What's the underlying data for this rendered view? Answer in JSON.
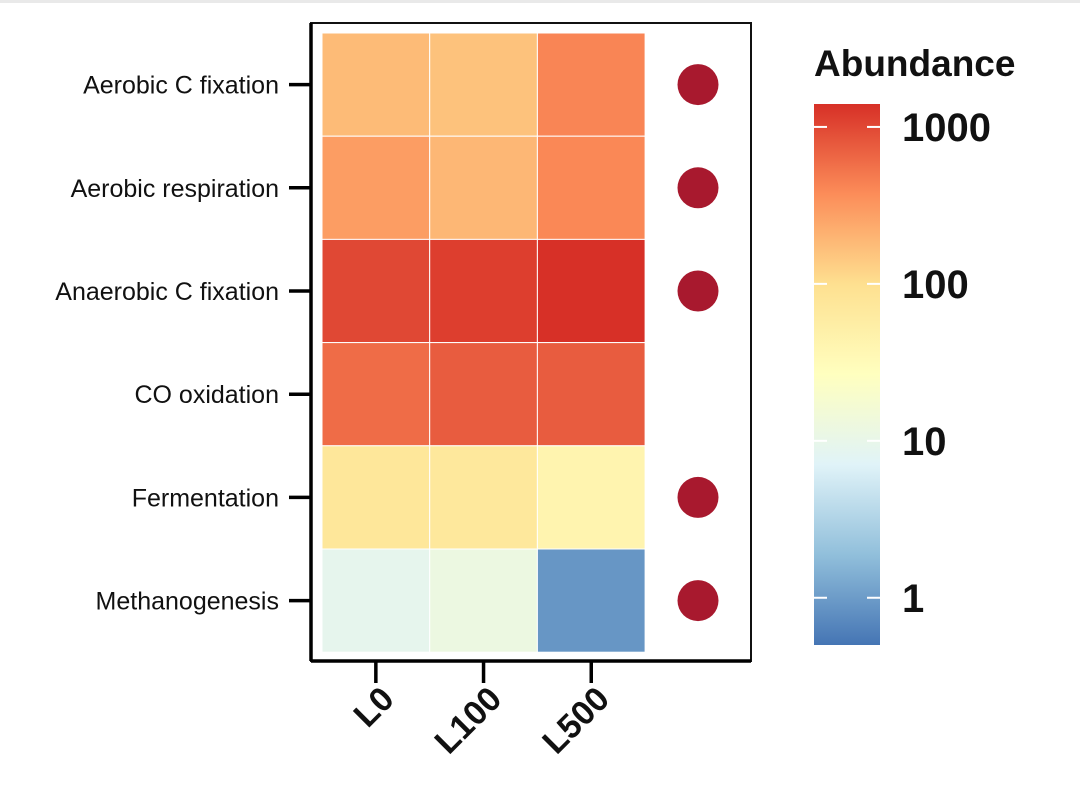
{
  "chart_data": {
    "type": "heatmap",
    "rows": [
      "Aerobic C fixation",
      "Aerobic respiration",
      "Anaerobic C fixation",
      "CO oxidation",
      "Fermentation",
      "Methanogenesis"
    ],
    "columns": [
      "L0",
      "L100",
      "L500"
    ],
    "values": [
      [
        180,
        160,
        420
      ],
      [
        290,
        190,
        400
      ],
      [
        1000,
        1150,
        1400
      ],
      [
        600,
        750,
        750
      ],
      [
        75,
        70,
        42
      ],
      [
        9,
        12,
        0.9
      ]
    ],
    "indicator_dots": [
      true,
      true,
      true,
      false,
      true,
      true
    ],
    "dot_color": "#a8192e",
    "legend": {
      "title": "Abundance",
      "scale": "log10",
      "range": [
        0.5,
        1400
      ],
      "ticks": [
        1,
        10,
        100,
        1000
      ],
      "tick_labels": [
        "1",
        "10",
        "100",
        "1000"
      ],
      "placement": "right"
    },
    "palette": [
      "#4575b4",
      "#91bfdb",
      "#e0f3f8",
      "#ffffbf",
      "#fee090",
      "#fc8d59",
      "#d73027"
    ]
  }
}
